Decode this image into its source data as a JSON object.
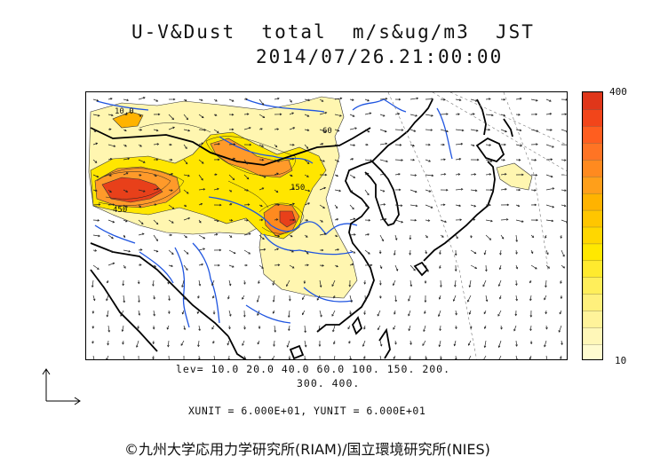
{
  "title": {
    "line1": "U-V&Dust  total  m/s&ug/m3  JST",
    "line2": "2014/07/26.21:00:00"
  },
  "colorbar": {
    "max_label": "400",
    "min_label": "10",
    "colors": [
      "#fffbcf",
      "#fff7b8",
      "#fff39a",
      "#fff07c",
      "#ffee5a",
      "#ffea2e",
      "#ffe800",
      "#ffd700",
      "#ffc600",
      "#ffb300",
      "#ff9f1a",
      "#ff8a1f",
      "#ff7424",
      "#ff5e1f",
      "#f2451a",
      "#e0361a"
    ]
  },
  "levels": {
    "line1": "lev= 10.0 20.0 40.0 60.0 100. 150. 200.",
    "line2": "300. 400."
  },
  "units_text": "XUNIT = 6.000E+01, YUNIT = 6.000E+01",
  "contour_labels": [
    "10.0",
    "450",
    "60",
    "150"
  ],
  "credit": "©九州大学応用力学研究所(RIAM)/国立環境研究所(NIES)",
  "palette": {
    "coast": "#000000",
    "river": "#1f55e0",
    "dust_low": "#fff6b0",
    "dust_mid": "#ffe600",
    "dust_high": "#ff8a1f",
    "dust_peak": "#e8401a",
    "vector": "#222222",
    "grid": "#777777"
  }
}
